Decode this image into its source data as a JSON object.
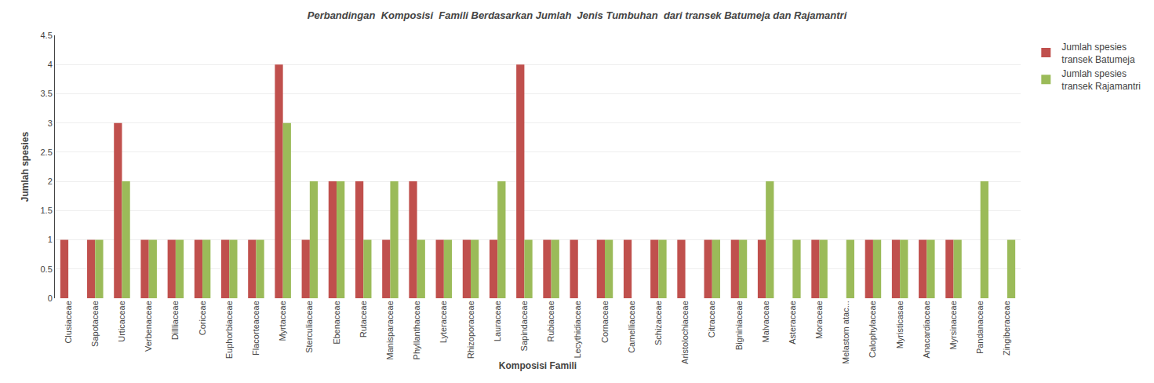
{
  "chart_data": {
    "type": "bar",
    "title": "Perbandingan  Komposisi  Famili Berdasarkan Jumlah  Jenis Tumbuhan  dari transek Batumeja dan Rajamantri",
    "x_label": "Komposisi Famili",
    "y_label": "Jumlah spesies",
    "categories": [
      "Clusiaceae",
      "Sapotaceae",
      "Urticaceae",
      "Verbenaceae",
      "Dillliaceae",
      "Coriceae",
      "Euphorbiaceae",
      "Flacorteaceae",
      "Myrtaceae",
      "Sterculiaceae",
      "Ebenaceae",
      "Rutaceae",
      "Manisparaceae",
      "Phyllanthaceae",
      "Lyteraceae",
      "Rhizoporaceae",
      "Lauraceae",
      "Sapindaceae",
      "Rubiaceae",
      "Lecythidiaceae",
      "Cornaceae",
      "Camelliaceae",
      "Schizaceae",
      "Aristolochiaceae",
      "Citraceae",
      "Bigniniaceae",
      "Malvaceae",
      "Asteraceae",
      "Moraceae",
      "Melastom atac...",
      "Calophylaceae",
      "Myristicasae",
      "Anacardiaceae",
      "Myrsinaceae",
      "Pandanaceae",
      "Zingiberaceae"
    ],
    "series": [
      {
        "name": "Jumlah spesies\ntransek Batumeja",
        "color": "#C0504D",
        "values": [
          1,
          1,
          3,
          1,
          1,
          1,
          1,
          1,
          4,
          1,
          2,
          2,
          1,
          2,
          1,
          1,
          1,
          4,
          1,
          1,
          1,
          1,
          1,
          1,
          1,
          1,
          1,
          0,
          1,
          0,
          1,
          1,
          1,
          1,
          0,
          0
        ]
      },
      {
        "name": "Jumlah spesies\ntransek Rajamantri",
        "color": "#9BBB59",
        "values": [
          0,
          1,
          2,
          1,
          1,
          1,
          1,
          1,
          3,
          2,
          2,
          1,
          2,
          1,
          1,
          1,
          2,
          1,
          1,
          0,
          1,
          0,
          1,
          0,
          1,
          1,
          2,
          1,
          1,
          1,
          1,
          1,
          1,
          1,
          2,
          1
        ]
      }
    ],
    "ylim": [
      0,
      4.5
    ],
    "yticks": [
      0,
      0.5,
      1,
      1.5,
      2,
      2.5,
      3,
      3.5,
      4,
      4.5
    ],
    "grid": true,
    "legend": "upper right"
  }
}
